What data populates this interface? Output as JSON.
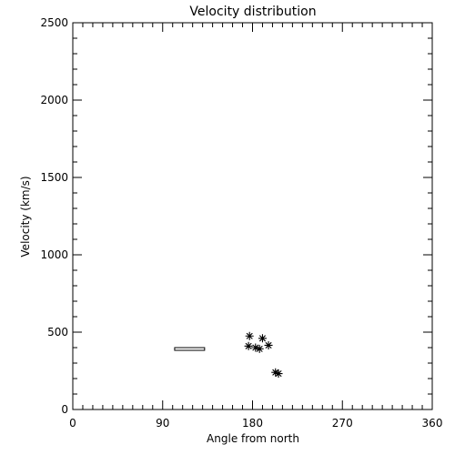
{
  "chart_data": {
    "type": "scatter",
    "title": "Velocity distribution",
    "xlabel": "Angle from north",
    "ylabel": "Velocity (km/s)",
    "xlim": [
      0,
      360
    ],
    "ylim": [
      0,
      2500
    ],
    "xticks": [
      0,
      90,
      180,
      270,
      360
    ],
    "yticks": [
      0,
      500,
      1000,
      1500,
      2000,
      2500
    ],
    "grid": false,
    "marker": "asterisk",
    "points": [
      {
        "x": 177,
        "y": 475
      },
      {
        "x": 190,
        "y": 460
      },
      {
        "x": 176,
        "y": 410
      },
      {
        "x": 183,
        "y": 400
      },
      {
        "x": 187,
        "y": 392
      },
      {
        "x": 196,
        "y": 415
      },
      {
        "x": 203,
        "y": 240
      },
      {
        "x": 206,
        "y": 232
      }
    ],
    "range_bar": {
      "x_start": 102,
      "x_end": 132,
      "y_low": 386,
      "y_high": 400
    }
  }
}
